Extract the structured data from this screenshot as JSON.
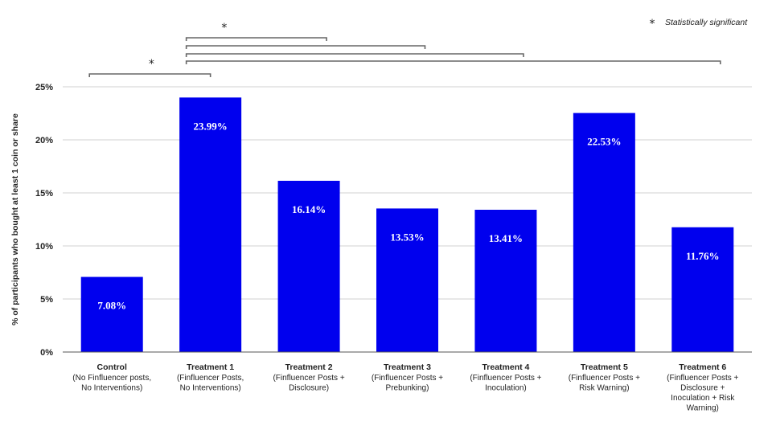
{
  "chart_data": {
    "type": "bar",
    "ylabel": "% of participants who bought at least 1 coin or share",
    "xlabel": "",
    "ylim": [
      0,
      25
    ],
    "yticks": [
      "0%",
      "5%",
      "10%",
      "15%",
      "20%",
      "25%"
    ],
    "grid": true,
    "bar_color": "#0000ee",
    "categories": [
      {
        "name": "Control",
        "sub": [
          "(No Finfluencer posts,",
          "No Interventions)"
        ]
      },
      {
        "name": "Treatment 1",
        "sub": [
          "(Finfluencer Posts,",
          "No Interventions)"
        ]
      },
      {
        "name": "Treatment 2",
        "sub": [
          "(Finfluencer Posts +",
          "Disclosure)"
        ]
      },
      {
        "name": "Treatment 3",
        "sub": [
          "(Finfluencer Posts +",
          "Prebunking)"
        ]
      },
      {
        "name": "Treatment 4",
        "sub": [
          "(Finfluencer Posts +",
          "Inoculation)"
        ]
      },
      {
        "name": "Treatment 5",
        "sub": [
          "(Finfluencer Posts +",
          "Risk Warning)"
        ]
      },
      {
        "name": "Treatment 6",
        "sub": [
          "(Finfluencer Posts +",
          "Disclosure +",
          "Inoculation + Risk",
          "Warning)"
        ]
      }
    ],
    "values": [
      7.08,
      23.99,
      16.14,
      13.53,
      13.41,
      22.53,
      11.76
    ],
    "data_labels": [
      "7.08%",
      "23.99%",
      "16.14%",
      "13.53%",
      "13.41%",
      "22.53%",
      "11.76%"
    ],
    "significance": {
      "marker": "*",
      "legend": "Statistically significant",
      "brackets": [
        {
          "from": 0,
          "to": 1,
          "marker": "*"
        },
        {
          "from": 1,
          "to": 2,
          "marker": "*"
        },
        {
          "from": 1,
          "to": 3,
          "marker": ""
        },
        {
          "from": 1,
          "to": 4,
          "marker": ""
        },
        {
          "from": 1,
          "to": 6,
          "marker": ""
        }
      ]
    }
  }
}
